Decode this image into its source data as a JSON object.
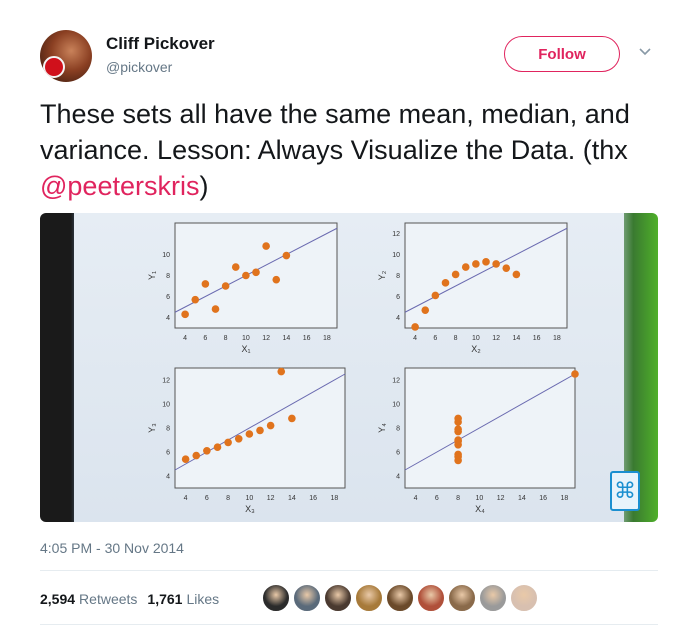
{
  "author": {
    "name": "Cliff Pickover",
    "handle": "@pickover"
  },
  "follow_button": {
    "label": "Follow"
  },
  "tweet": {
    "text_before": "These sets all have the same mean, median, and variance. Lesson: Always Visualize the Data. (thx ",
    "mention": "@peeterskris",
    "text_after": ")"
  },
  "timestamp": "4:05 PM - 30 Nov 2014",
  "stats": {
    "retweets_count": "2,594",
    "retweets_label": "Retweets",
    "likes_count": "1,761",
    "likes_label": "Likes"
  },
  "likers": [
    {
      "icon": "user-avatar-icon",
      "color": "#2b2b2b"
    },
    {
      "icon": "user-avatar-icon",
      "color": "#5a6a7a"
    },
    {
      "icon": "user-avatar-icon",
      "color": "#4a3a30"
    },
    {
      "icon": "user-avatar-icon",
      "color": "#a77a3a"
    },
    {
      "icon": "user-avatar-icon",
      "color": "#6b4a2a"
    },
    {
      "icon": "user-avatar-icon",
      "color": "#b0503a"
    },
    {
      "icon": "user-avatar-icon",
      "color": "#8a6a4a"
    },
    {
      "icon": "user-avatar-icon",
      "color": "#9a9a9a"
    },
    {
      "icon": "user-avatar-icon",
      "color": "#d8c0b0"
    }
  ],
  "chart_data": [
    {
      "type": "scatter",
      "xlabel": "X₁",
      "ylabel": "Y₁",
      "xticks": [
        4,
        6,
        8,
        10,
        12,
        14,
        16,
        18
      ],
      "yticks": [
        4,
        6,
        8,
        10
      ],
      "xlim": [
        3,
        19
      ],
      "ylim": [
        3,
        13
      ],
      "points": [
        [
          4,
          4.3
        ],
        [
          5,
          5.7
        ],
        [
          6,
          7.2
        ],
        [
          7,
          4.8
        ],
        [
          8,
          7
        ],
        [
          9,
          8.8
        ],
        [
          10,
          8
        ],
        [
          11,
          8.3
        ],
        [
          12,
          10.8
        ],
        [
          13,
          7.6
        ],
        [
          14,
          9.9
        ]
      ],
      "fit": [
        [
          3,
          4.5
        ],
        [
          19,
          12.5
        ]
      ]
    },
    {
      "type": "scatter",
      "xlabel": "X₂",
      "ylabel": "Y₂",
      "xticks": [
        4,
        6,
        8,
        10,
        12,
        14,
        16,
        18
      ],
      "yticks": [
        4,
        6,
        8,
        10,
        12
      ],
      "xlim": [
        3,
        19
      ],
      "ylim": [
        3,
        13
      ],
      "points": [
        [
          4,
          3.1
        ],
        [
          5,
          4.7
        ],
        [
          6,
          6.1
        ],
        [
          7,
          7.3
        ],
        [
          8,
          8.1
        ],
        [
          9,
          8.8
        ],
        [
          10,
          9.1
        ],
        [
          11,
          9.3
        ],
        [
          12,
          9.1
        ],
        [
          13,
          8.7
        ],
        [
          14,
          8.1
        ]
      ],
      "fit": [
        [
          3,
          4.5
        ],
        [
          19,
          12.5
        ]
      ]
    },
    {
      "type": "scatter",
      "xlabel": "X₃",
      "ylabel": "Y₃",
      "xticks": [
        4,
        6,
        8,
        10,
        12,
        14,
        16,
        18
      ],
      "yticks": [
        4,
        6,
        8,
        10,
        12
      ],
      "xlim": [
        3,
        19
      ],
      "ylim": [
        3,
        13
      ],
      "points": [
        [
          4,
          5.4
        ],
        [
          5,
          5.7
        ],
        [
          6,
          6.1
        ],
        [
          7,
          6.4
        ],
        [
          8,
          6.8
        ],
        [
          9,
          7.1
        ],
        [
          10,
          7.5
        ],
        [
          11,
          7.8
        ],
        [
          12,
          8.2
        ],
        [
          13,
          12.7
        ],
        [
          14,
          8.8
        ]
      ],
      "fit": [
        [
          3,
          4.5
        ],
        [
          19,
          12.5
        ]
      ]
    },
    {
      "type": "scatter",
      "xlabel": "X₄",
      "ylabel": "Y₄",
      "xticks": [
        4,
        6,
        8,
        10,
        12,
        14,
        16,
        18
      ],
      "yticks": [
        4,
        6,
        8,
        10,
        12
      ],
      "xlim": [
        3,
        19
      ],
      "ylim": [
        3,
        13
      ],
      "points": [
        [
          8,
          6.6
        ],
        [
          8,
          5.8
        ],
        [
          8,
          7.7
        ],
        [
          8,
          8.8
        ],
        [
          8,
          8.5
        ],
        [
          8,
          7
        ],
        [
          8,
          5.3
        ],
        [
          8,
          5.6
        ],
        [
          8,
          7.9
        ],
        [
          8,
          6.9
        ],
        [
          19,
          12.5
        ]
      ],
      "fit": [
        [
          3,
          4.5
        ],
        [
          19,
          12.5
        ]
      ]
    }
  ]
}
